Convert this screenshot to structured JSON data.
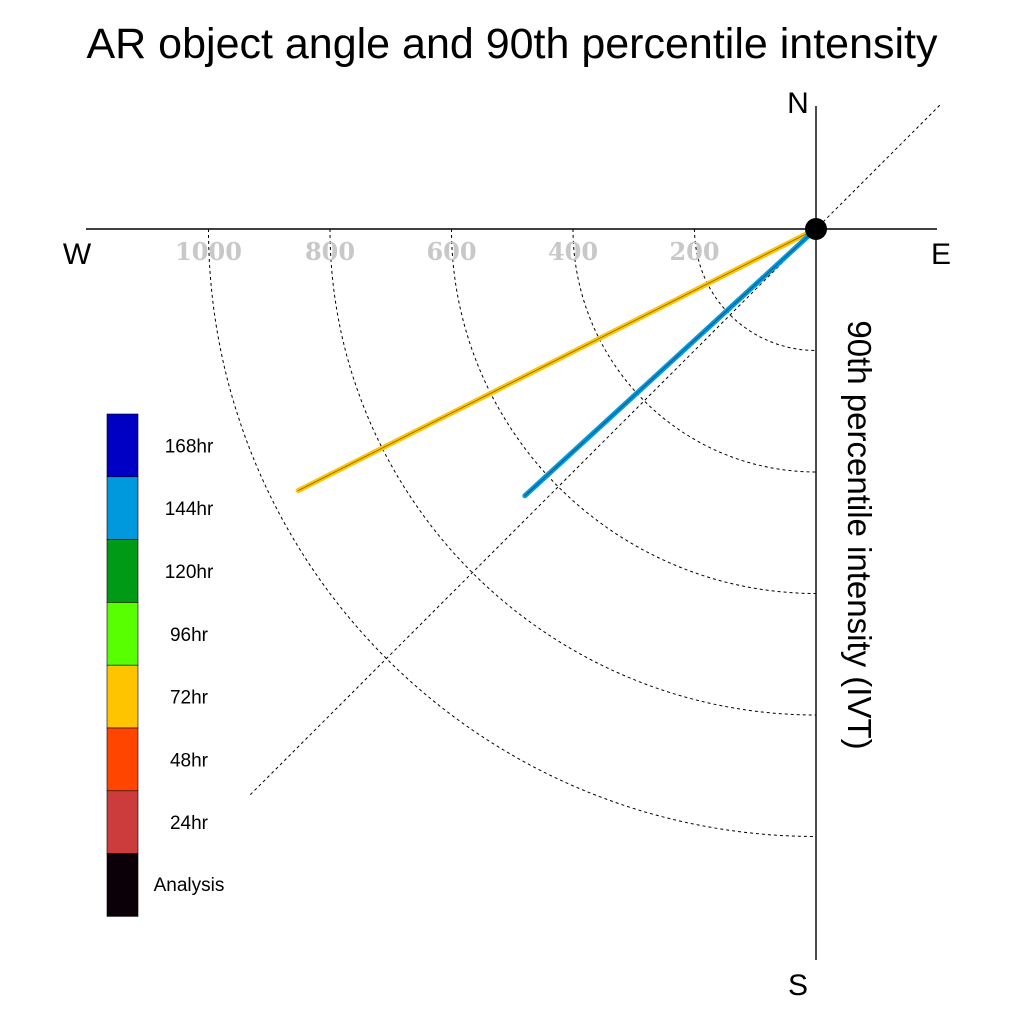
{
  "chart_data": {
    "type": "polar",
    "title": "AR object angle and 90th percentile intensity",
    "ylabel": "90th percentile intensity (IVT)",
    "compass": {
      "north": "N",
      "south": "S",
      "west": "W",
      "east": "E"
    },
    "radial_ticks": [
      200,
      400,
      600,
      800,
      1000
    ],
    "radial_tick_labels": [
      "200",
      "400",
      "600",
      "800",
      "1000"
    ],
    "reference_angle_deg": 45,
    "series": [
      {
        "name": "72hr",
        "color": "#ffc400",
        "angle_deg": 206.8,
        "value": 955
      },
      {
        "name": "144hr",
        "color": "#0099dd",
        "angle_deg": 222.5,
        "value": 650
      }
    ],
    "legend": {
      "placement": "left",
      "items": [
        {
          "label": "168hr",
          "color": "#0000c4"
        },
        {
          "label": "144hr",
          "color": "#0099dd"
        },
        {
          "label": "120hr",
          "color": "#009a16"
        },
        {
          "label": "96hr",
          "color": "#58ff00"
        },
        {
          "label": "72hr",
          "color": "#ffc400"
        },
        {
          "label": "48hr",
          "color": "#ff4500"
        },
        {
          "label": "24hr",
          "color": "#cc3c3c"
        },
        {
          "label": "Analysis",
          "color": "#0c0008"
        }
      ]
    }
  }
}
